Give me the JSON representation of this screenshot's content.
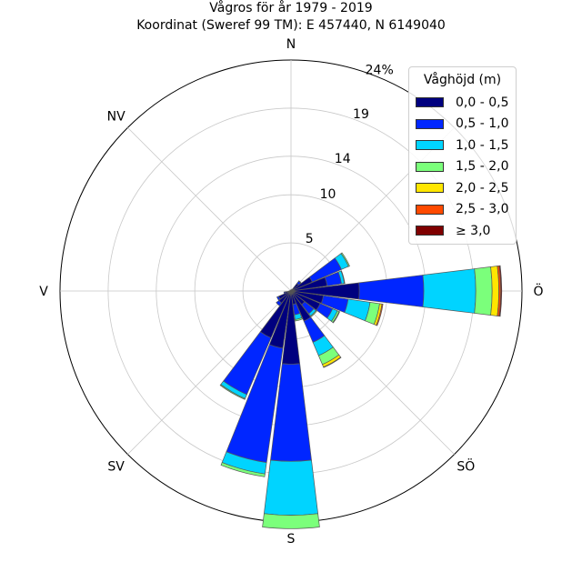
{
  "title_line1": "Vågros för år 1979 - 2019",
  "title_line2": "Koordinat (Sweref 99 TM): E 457440, N 6149040",
  "chart_data": {
    "type": "windrose",
    "title": "Vågros för år 1979 - 2019",
    "subtitle": "Koordinat (Sweref 99 TM): E 457440, N 6149040",
    "legend_title": "Våghöjd (m)",
    "legend_position": "top-right",
    "bins": [
      "0,0 - 0,5",
      "0,5 - 1,0",
      "1,0 - 1,5",
      "1,5 - 2,0",
      "2,0 - 2,5",
      "2,5 - 3,0",
      "≥ 3,0"
    ],
    "colors": [
      "#00007f",
      "#0026ff",
      "#00d4ff",
      "#7bff7b",
      "#ffe600",
      "#ff4a00",
      "#7f0000"
    ],
    "direction_labels": [
      "N",
      "NV",
      "V",
      "SV",
      "S",
      "SÖ",
      "Ö"
    ],
    "direction_angles": [
      0,
      315,
      270,
      225,
      180,
      135,
      90
    ],
    "radial_max": 24,
    "radial_ticks": [
      5,
      10,
      14,
      19,
      24
    ],
    "radial_tick_labels": [
      "5",
      "10",
      "14",
      "19",
      "24%"
    ],
    "sector_width_deg": 15,
    "sectors": [
      {
        "direction": 0,
        "values": [
          0.1
        ]
      },
      {
        "direction": 15,
        "values": [
          0.1
        ]
      },
      {
        "direction": 30,
        "values": [
          0.2
        ]
      },
      {
        "direction": 45,
        "values": [
          1.0,
          0.3,
          0.05
        ]
      },
      {
        "direction": 60,
        "values": [
          2.4,
          3.3,
          0.8,
          0.12
        ]
      },
      {
        "direction": 75,
        "values": [
          3.8,
          1.5,
          0.3,
          0.05
        ]
      },
      {
        "direction": 90,
        "values": [
          7.1,
          6.7,
          5.4,
          1.7,
          0.7,
          0.2,
          0.1
        ]
      },
      {
        "direction": 105,
        "values": [
          3.4,
          2.6,
          2.3,
          1.0,
          0.25,
          0.1
        ]
      },
      {
        "direction": 120,
        "values": [
          3.3,
          1.4,
          0.55,
          0.2,
          0.05
        ]
      },
      {
        "direction": 135,
        "values": [
          1.8,
          1.2,
          0.3,
          0.1
        ]
      },
      {
        "direction": 150,
        "values": [
          3.4,
          2.4,
          1.5,
          1.0,
          0.3,
          0.05
        ]
      },
      {
        "direction": 165,
        "values": [
          1.4,
          1.1,
          0.5,
          0.15
        ]
      },
      {
        "direction": 180,
        "values": [
          7.6,
          10.1,
          5.6,
          1.4
        ]
      },
      {
        "direction": 195,
        "values": [
          6.0,
          12.0,
          1.2,
          0.3
        ]
      },
      {
        "direction": 210,
        "values": [
          5.3,
          6.4,
          0.45,
          0.1
        ]
      },
      {
        "direction": 225,
        "values": [
          1.6,
          0.35
        ]
      },
      {
        "direction": 240,
        "values": [
          1.4,
          0.2
        ]
      },
      {
        "direction": 255,
        "values": [
          0.6,
          0.15
        ]
      },
      {
        "direction": 270,
        "values": [
          0.2
        ]
      },
      {
        "direction": 285,
        "values": [
          0.1
        ]
      },
      {
        "direction": 300,
        "values": [
          0.1
        ]
      },
      {
        "direction": 315,
        "values": [
          0.1
        ]
      },
      {
        "direction": 330,
        "values": [
          0.1
        ]
      },
      {
        "direction": 345,
        "values": [
          0.1
        ]
      }
    ]
  }
}
